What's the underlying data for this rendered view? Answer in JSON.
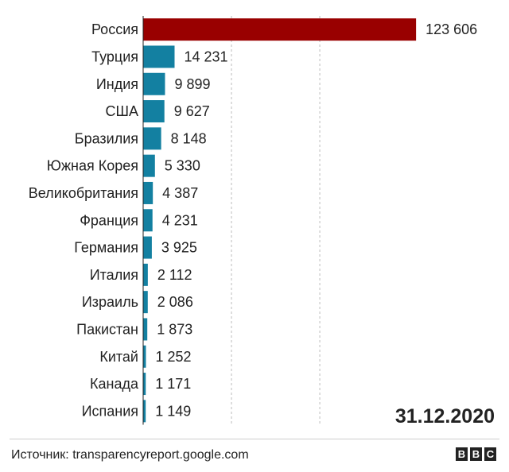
{
  "chart_data": {
    "type": "bar",
    "orientation": "horizontal",
    "categories": [
      "Россия",
      "Турция",
      "Индия",
      "США",
      "Бразилия",
      "Южная Корея",
      "Великобритания",
      "Франция",
      "Германия",
      "Италия",
      "Израиль",
      "Пакистан",
      "Китай",
      "Канада",
      "Испания"
    ],
    "values": [
      123606,
      14231,
      9899,
      9627,
      8148,
      5330,
      4387,
      4231,
      3925,
      2112,
      2086,
      1873,
      1252,
      1171,
      1149
    ],
    "value_labels": [
      "123 606",
      "14 231",
      "9 899",
      "9 627",
      "8 148",
      "5 330",
      "4 387",
      "4 231",
      "3 925",
      "2 112",
      "2 086",
      "1 873",
      "1 252",
      "1 171",
      "1 149"
    ],
    "xlim": [
      0,
      125000
    ],
    "gridlines": [
      40000,
      80000
    ],
    "colors": {
      "highlight": "#990000",
      "default": "#1380a1",
      "grid": "#bbbbbb"
    },
    "grid": true,
    "legend": "none"
  },
  "date_label": "31.12.2020",
  "source": "Источник: transparencyreport.google.com",
  "logo": [
    "B",
    "B",
    "C"
  ]
}
